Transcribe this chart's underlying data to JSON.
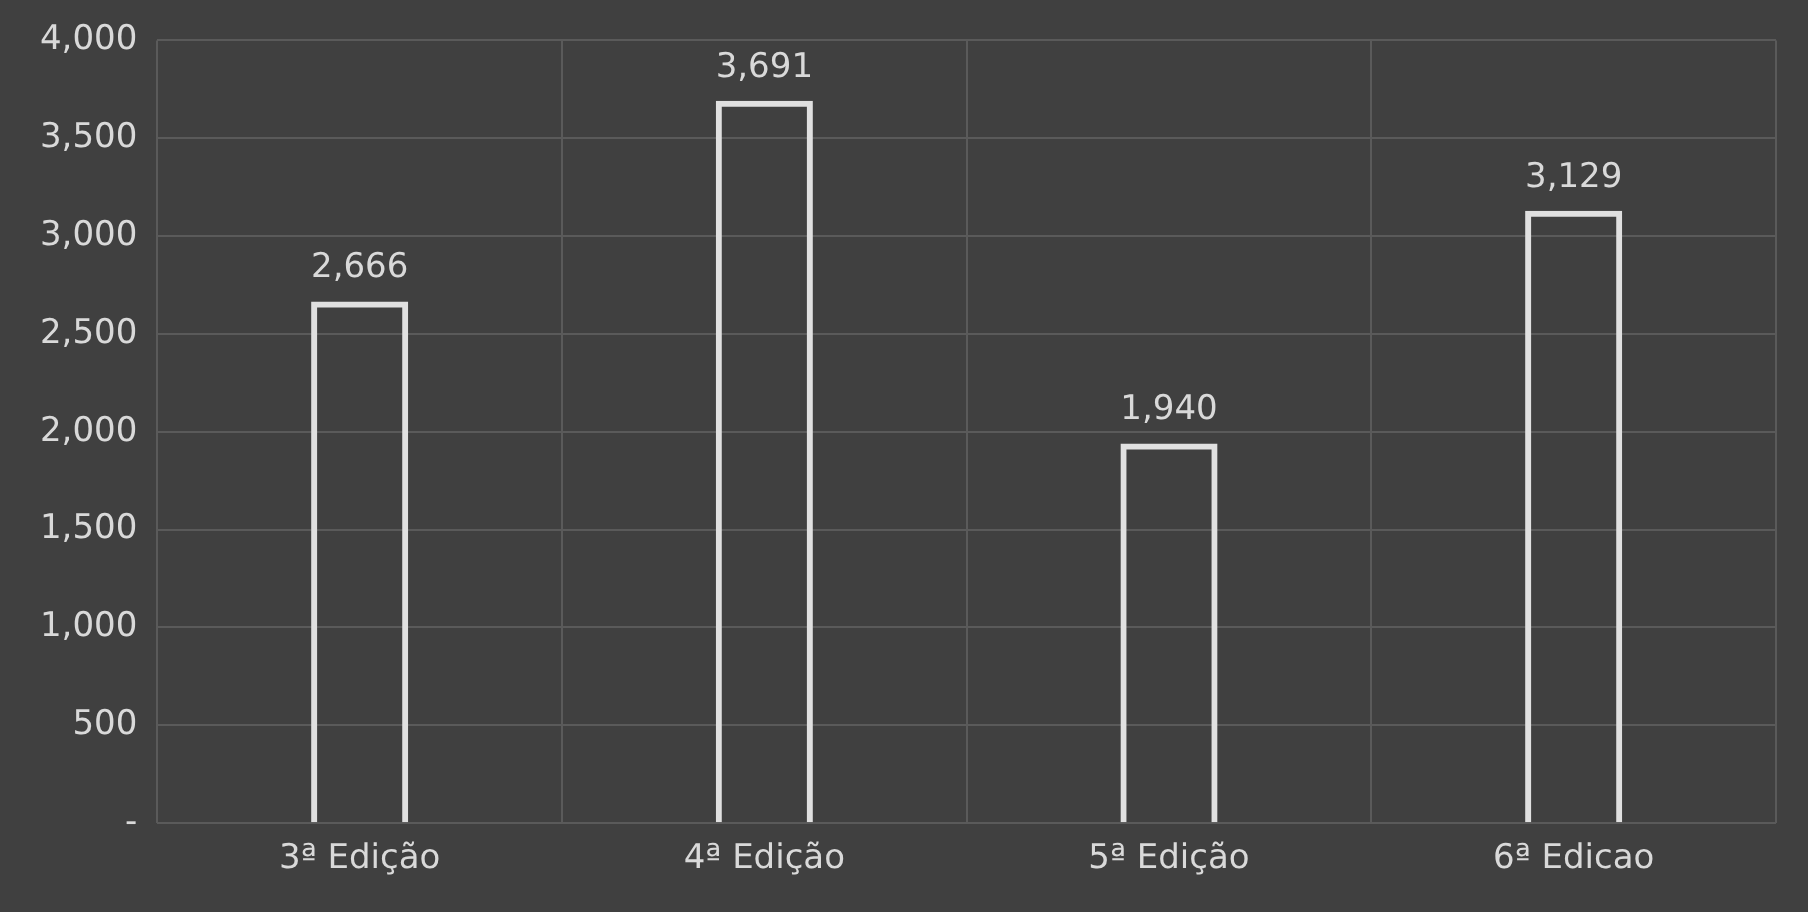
{
  "chart_data": {
    "type": "bar",
    "categories": [
      "3ª Edição",
      "4ª Edição",
      "5ª Edição",
      "6ª Edicao"
    ],
    "values": [
      2666,
      3691,
      1940,
      3129
    ],
    "value_labels": [
      "2,666",
      "3,691",
      "1,940",
      "3,129"
    ],
    "color": "#e0e0e0",
    "ylim": [
      0,
      4000
    ],
    "yticks": [
      {
        "value": 0,
        "label": "-"
      },
      {
        "value": 500,
        "label": "500"
      },
      {
        "value": 1000,
        "label": "1,000"
      },
      {
        "value": 1500,
        "label": "1,500"
      },
      {
        "value": 2000,
        "label": "2,000"
      },
      {
        "value": 2500,
        "label": "2,500"
      },
      {
        "value": 3000,
        "label": "3,000"
      },
      {
        "value": 3500,
        "label": "3,500"
      },
      {
        "value": 4000,
        "label": "4,000"
      }
    ],
    "grid": true,
    "legend": false
  }
}
